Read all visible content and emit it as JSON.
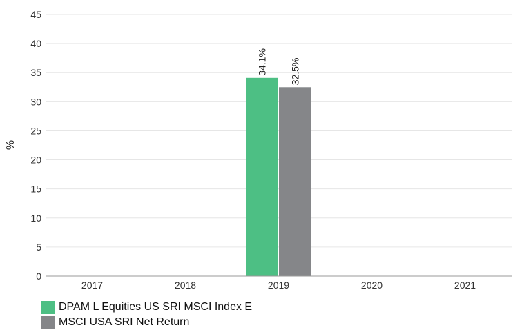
{
  "chart_data": {
    "type": "bar",
    "categories": [
      "2017",
      "2018",
      "2019",
      "2020",
      "2021"
    ],
    "series": [
      {
        "name": "DPAM L Equities US SRI MSCI Index E",
        "color": "#4dbf84",
        "values": [
          null,
          null,
          34.1,
          null,
          null
        ],
        "labels": [
          "",
          "",
          "34.1%",
          "",
          ""
        ]
      },
      {
        "name": "MSCI USA SRI Net Return",
        "color": "#858689",
        "values": [
          null,
          null,
          32.5,
          null,
          null
        ],
        "labels": [
          "",
          "",
          "32.5%",
          "",
          ""
        ]
      }
    ],
    "ylabel": "%",
    "ylim": [
      0,
      45
    ],
    "yticks": [
      "0",
      "5",
      "10",
      "15",
      "20",
      "25",
      "30",
      "35",
      "40",
      "45"
    ],
    "grid": true,
    "legend_position": "bottom-left"
  }
}
